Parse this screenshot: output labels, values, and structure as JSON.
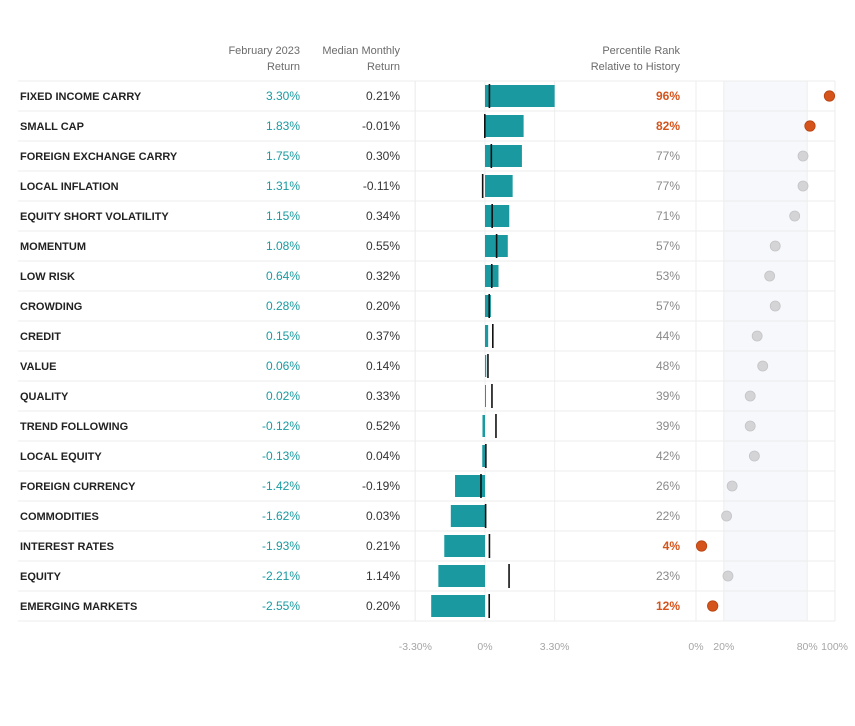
{
  "chart_data": {
    "type": "table",
    "columns": {
      "factor": "",
      "february_return": [
        "February 2023",
        "Return"
      ],
      "median_monthly": [
        "Median Monthly",
        "Return"
      ],
      "percentile": [
        "Percentile Rank",
        "Relative to History"
      ]
    },
    "rows": [
      {
        "name": "FIXED INCOME CARRY",
        "feb": 3.3,
        "feb_label": "3.30%",
        "median": 0.21,
        "median_label": "0.21%",
        "pct": 96,
        "pct_label": "96%",
        "highlight": true
      },
      {
        "name": "SMALL CAP",
        "feb": 1.83,
        "feb_label": "1.83%",
        "median": -0.01,
        "median_label": "-0.01%",
        "pct": 82,
        "pct_label": "82%",
        "highlight": true
      },
      {
        "name": "FOREIGN EXCHANGE CARRY",
        "feb": 1.75,
        "feb_label": "1.75%",
        "median": 0.3,
        "median_label": "0.30%",
        "pct": 77,
        "pct_label": "77%",
        "highlight": false
      },
      {
        "name": "LOCAL INFLATION",
        "feb": 1.31,
        "feb_label": "1.31%",
        "median": -0.11,
        "median_label": "-0.11%",
        "pct": 77,
        "pct_label": "77%",
        "highlight": false
      },
      {
        "name": "EQUITY SHORT VOLATILITY",
        "feb": 1.15,
        "feb_label": "1.15%",
        "median": 0.34,
        "median_label": "0.34%",
        "pct": 71,
        "pct_label": "71%",
        "highlight": false
      },
      {
        "name": "MOMENTUM",
        "feb": 1.08,
        "feb_label": "1.08%",
        "median": 0.55,
        "median_label": "0.55%",
        "pct": 57,
        "pct_label": "57%",
        "highlight": false
      },
      {
        "name": "LOW RISK",
        "feb": 0.64,
        "feb_label": "0.64%",
        "median": 0.32,
        "median_label": "0.32%",
        "pct": 53,
        "pct_label": "53%",
        "highlight": false
      },
      {
        "name": "CROWDING",
        "feb": 0.28,
        "feb_label": "0.28%",
        "median": 0.2,
        "median_label": "0.20%",
        "pct": 57,
        "pct_label": "57%",
        "highlight": false
      },
      {
        "name": "CREDIT",
        "feb": 0.15,
        "feb_label": "0.15%",
        "median": 0.37,
        "median_label": "0.37%",
        "pct": 44,
        "pct_label": "44%",
        "highlight": false
      },
      {
        "name": "VALUE",
        "feb": 0.06,
        "feb_label": "0.06%",
        "median": 0.14,
        "median_label": "0.14%",
        "pct": 48,
        "pct_label": "48%",
        "highlight": false
      },
      {
        "name": "QUALITY",
        "feb": 0.02,
        "feb_label": "0.02%",
        "median": 0.33,
        "median_label": "0.33%",
        "pct": 39,
        "pct_label": "39%",
        "highlight": false
      },
      {
        "name": "TREND FOLLOWING",
        "feb": -0.12,
        "feb_label": "-0.12%",
        "median": 0.52,
        "median_label": "0.52%",
        "pct": 39,
        "pct_label": "39%",
        "highlight": false
      },
      {
        "name": "LOCAL EQUITY",
        "feb": -0.13,
        "feb_label": "-0.13%",
        "median": 0.04,
        "median_label": "0.04%",
        "pct": 42,
        "pct_label": "42%",
        "highlight": false
      },
      {
        "name": "FOREIGN CURRENCY",
        "feb": -1.42,
        "feb_label": "-1.42%",
        "median": -0.19,
        "median_label": "-0.19%",
        "pct": 26,
        "pct_label": "26%",
        "highlight": false
      },
      {
        "name": "COMMODITIES",
        "feb": -1.62,
        "feb_label": "-1.62%",
        "median": 0.03,
        "median_label": "0.03%",
        "pct": 22,
        "pct_label": "22%",
        "highlight": false
      },
      {
        "name": "INTEREST RATES",
        "feb": -1.93,
        "feb_label": "-1.93%",
        "median": 0.21,
        "median_label": "0.21%",
        "pct": 4,
        "pct_label": "4%",
        "highlight": true
      },
      {
        "name": "EQUITY",
        "feb": -2.21,
        "feb_label": "-2.21%",
        "median": 1.14,
        "median_label": "1.14%",
        "pct": 23,
        "pct_label": "23%",
        "highlight": false
      },
      {
        "name": "EMERGING MARKETS",
        "feb": -2.55,
        "feb_label": "-2.55%",
        "median": 0.2,
        "median_label": "0.20%",
        "pct": 12,
        "pct_label": "12%",
        "highlight": true
      }
    ],
    "bar_axis": {
      "range": [
        -3.3,
        3.3
      ],
      "ticks": [
        -3.3,
        0,
        3.3
      ],
      "tick_labels": [
        "-3.30%",
        "0%",
        "3.30%"
      ]
    },
    "percentile_axis": {
      "range": [
        0,
        100
      ],
      "ticks": [
        0,
        20,
        80,
        100
      ],
      "tick_labels": [
        "0%",
        "20%",
        "80%",
        "100%"
      ],
      "band": [
        20,
        80
      ]
    },
    "colors": {
      "bar": "#1a9aa0",
      "feb_text": "#1a9aa0",
      "median_marker": "#111111",
      "dot_highlight": "#d4541c",
      "dot_normal": "#d4d4d6",
      "pct_highlight_text": "#d4541c",
      "pct_normal_text": "#8a8a8a",
      "band": "#f6f8fb",
      "header_text": "#6b6b6b",
      "name_text": "#222222",
      "row_border": "#ececec",
      "axis_text": "#a6a6a6"
    }
  }
}
